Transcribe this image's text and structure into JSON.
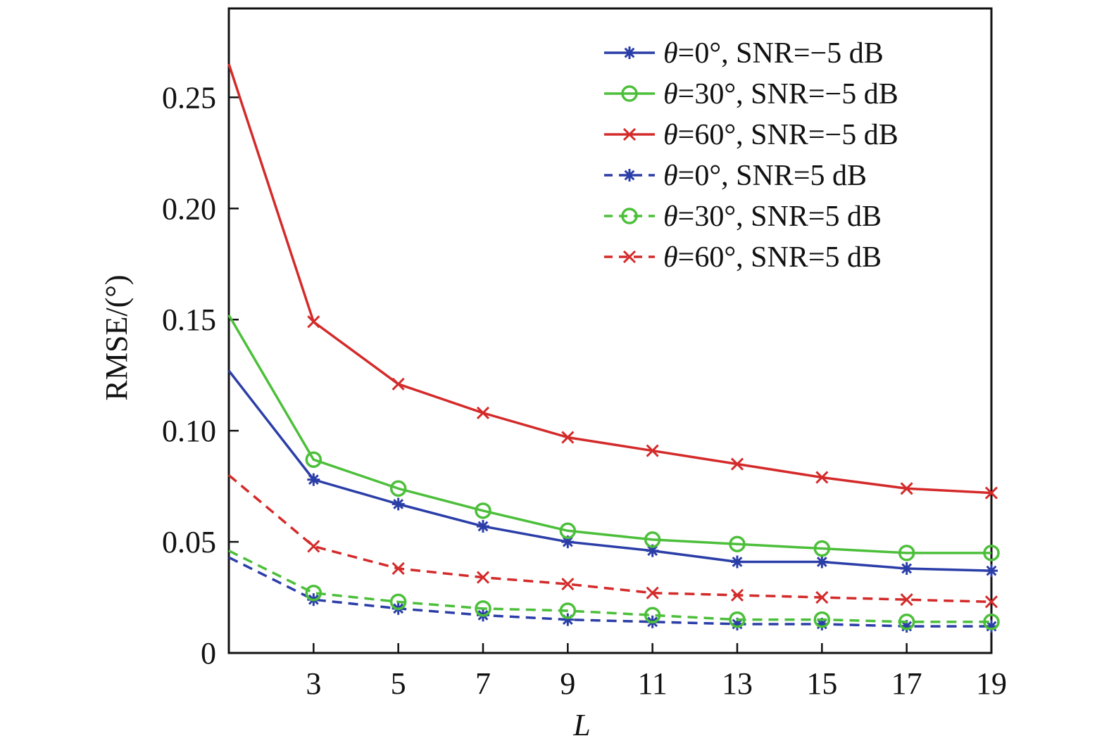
{
  "chart_data": {
    "type": "line",
    "xlabel": "L",
    "ylabel": "RMSE/(°)",
    "xlim": [
      1,
      19
    ],
    "ylim": [
      0,
      0.29
    ],
    "xticks": [
      3,
      5,
      7,
      9,
      11,
      13,
      15,
      17,
      19
    ],
    "yticks": [
      0,
      0.05,
      0.1,
      0.15,
      0.2,
      0.25
    ],
    "ytick_labels": [
      "0",
      "0.05",
      "0.10",
      "0.15",
      "0.20",
      "0.25"
    ],
    "grid": false,
    "legend_position": "top-right",
    "x": [
      1,
      3,
      5,
      7,
      9,
      11,
      13,
      15,
      17,
      19
    ],
    "series": [
      {
        "name_prefix": "θ",
        "name": "=0°, SNR=−5 dB",
        "color": "#2b3ea8",
        "dash": "solid",
        "marker": "asterisk",
        "values": [
          0.127,
          0.078,
          0.067,
          0.057,
          0.05,
          0.046,
          0.041,
          0.041,
          0.038,
          0.037
        ]
      },
      {
        "name_prefix": "θ",
        "name": "=30°, SNR=−5 dB",
        "color": "#4cbf3a",
        "dash": "solid",
        "marker": "circle",
        "values": [
          0.152,
          0.087,
          0.074,
          0.064,
          0.055,
          0.051,
          0.049,
          0.047,
          0.045,
          0.045
        ]
      },
      {
        "name_prefix": "θ",
        "name": "=60°, SNR=−5 dB",
        "color": "#d42a2a",
        "dash": "solid",
        "marker": "x",
        "values": [
          0.265,
          0.149,
          0.121,
          0.108,
          0.097,
          0.091,
          0.085,
          0.079,
          0.074,
          0.072
        ]
      },
      {
        "name_prefix": "θ",
        "name": "=0°, SNR=5 dB",
        "color": "#2b3ea8",
        "dash": "dashed",
        "marker": "asterisk",
        "values": [
          0.043,
          0.024,
          0.02,
          0.017,
          0.015,
          0.014,
          0.013,
          0.013,
          0.012,
          0.012
        ]
      },
      {
        "name_prefix": "θ",
        "name": "=30°, SNR=5 dB",
        "color": "#4cbf3a",
        "dash": "dashed",
        "marker": "circle",
        "values": [
          0.046,
          0.027,
          0.023,
          0.02,
          0.019,
          0.017,
          0.015,
          0.015,
          0.014,
          0.014
        ]
      },
      {
        "name_prefix": "θ",
        "name": "=60°, SNR=5 dB",
        "color": "#d42a2a",
        "dash": "dashed",
        "marker": "x",
        "values": [
          0.08,
          0.048,
          0.038,
          0.034,
          0.031,
          0.027,
          0.026,
          0.025,
          0.024,
          0.023
        ]
      }
    ]
  }
}
